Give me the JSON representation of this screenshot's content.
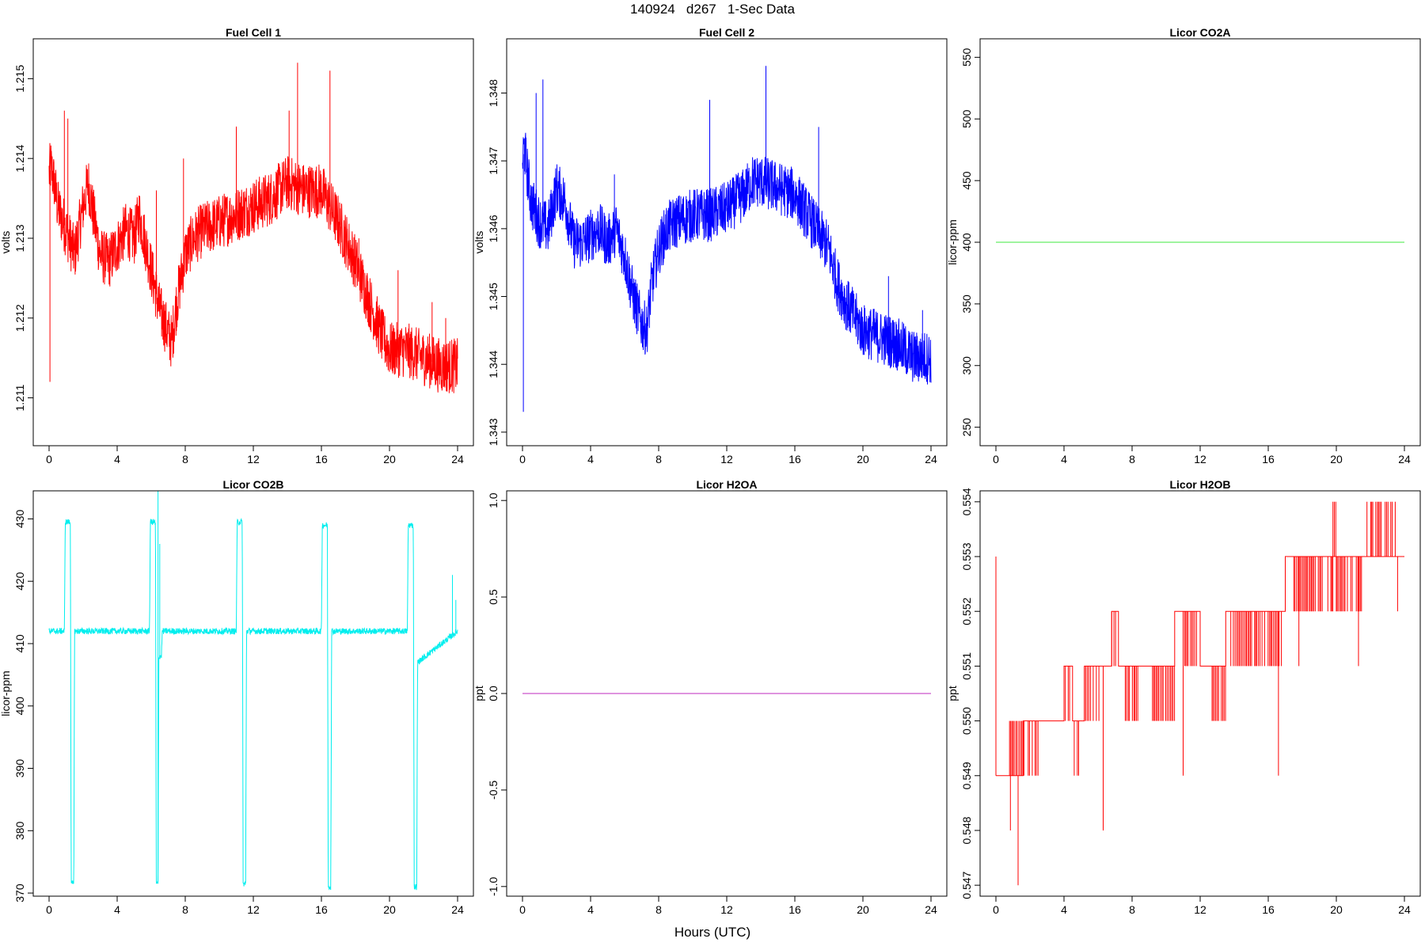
{
  "figure": {
    "title": "140924   d267   1-Sec Data",
    "xlabel": "Hours (UTC)"
  },
  "chart_data": [
    {
      "type": "line",
      "title": "Fuel Cell 1",
      "ylabel": "volts",
      "color": "#ff0000",
      "xlim": [
        0,
        24
      ],
      "ylim": [
        1.2104,
        1.2155
      ],
      "xticks": [
        0,
        4,
        8,
        12,
        16,
        20,
        24
      ],
      "yticks": [
        1.211,
        1.212,
        1.213,
        1.214,
        1.215
      ],
      "ytick_labels": [
        "1.211",
        "1.212",
        "1.213",
        "1.214",
        "1.215"
      ],
      "band": 0.00035,
      "x": [
        0,
        0.1,
        0.3,
        0.5,
        1,
        1.5,
        2,
        2.3,
        2.6,
        3,
        3.5,
        4,
        4.5,
        5,
        5.3,
        5.5,
        6,
        6.5,
        7,
        7.2,
        7.5,
        8,
        8.5,
        9,
        10,
        11,
        12,
        13,
        13.5,
        14,
        15,
        16,
        16.5,
        17,
        18,
        18.5,
        19,
        19.5,
        20,
        21,
        22,
        23,
        24
      ],
      "y": [
        1.2138,
        1.2139,
        1.2137,
        1.2134,
        1.2131,
        1.2128,
        1.2134,
        1.2137,
        1.2133,
        1.2128,
        1.2127,
        1.2129,
        1.2131,
        1.213,
        1.2133,
        1.2131,
        1.2126,
        1.2121,
        1.2118,
        1.2117,
        1.2122,
        1.2128,
        1.213,
        1.2131,
        1.2132,
        1.2133,
        1.2134,
        1.2135,
        1.2136,
        1.2137,
        1.2136,
        1.2136,
        1.2134,
        1.2132,
        1.2127,
        1.2124,
        1.2121,
        1.2118,
        1.2116,
        1.2116,
        1.2115,
        1.2114,
        1.2114
      ],
      "spikes": [
        [
          0.05,
          1.2112
        ],
        [
          0.9,
          1.2146
        ],
        [
          1.1,
          1.2145
        ],
        [
          6.3,
          1.2136
        ],
        [
          7.9,
          1.214
        ],
        [
          11,
          1.2144
        ],
        [
          14.1,
          1.2146
        ],
        [
          14.6,
          1.2152
        ],
        [
          16.5,
          1.2151
        ],
        [
          18.2,
          1.213
        ],
        [
          20.5,
          1.2126
        ],
        [
          22.5,
          1.2122
        ],
        [
          23.3,
          1.212
        ]
      ]
    },
    {
      "type": "line",
      "title": "Fuel Cell 2",
      "ylabel": "volts",
      "color": "#0000ff",
      "xlim": [
        0,
        24
      ],
      "ylim": [
        1.3428,
        1.3488
      ],
      "xticks": [
        0,
        4,
        8,
        12,
        16,
        20,
        24
      ],
      "yticks": [
        1.343,
        1.344,
        1.345,
        1.346,
        1.347,
        1.348
      ],
      "ytick_labels": [
        "1.343",
        "1.344",
        "1.345",
        "1.346",
        "1.347",
        "1.348"
      ],
      "band": 0.0004,
      "x": [
        0,
        0.1,
        0.3,
        0.5,
        1,
        1.5,
        2,
        2.5,
        3,
        3.5,
        4,
        4.5,
        5,
        5.5,
        6,
        6.5,
        7,
        7.3,
        7.6,
        8,
        8.5,
        9,
        10,
        11,
        12,
        13,
        13.5,
        14,
        15,
        16,
        16.5,
        17,
        18,
        18.5,
        19,
        19.5,
        20,
        21,
        22,
        23,
        24
      ],
      "y": [
        1.347,
        1.3472,
        1.3468,
        1.3464,
        1.3461,
        1.346,
        1.3466,
        1.3464,
        1.3458,
        1.3458,
        1.3459,
        1.346,
        1.3458,
        1.346,
        1.3456,
        1.345,
        1.3446,
        1.3445,
        1.3452,
        1.3457,
        1.346,
        1.3461,
        1.3462,
        1.3462,
        1.3463,
        1.3465,
        1.3467,
        1.3467,
        1.3466,
        1.3465,
        1.3463,
        1.3461,
        1.3457,
        1.3452,
        1.3449,
        1.3447,
        1.3445,
        1.3444,
        1.3443,
        1.3441,
        1.3441
      ],
      "spikes": [
        [
          0.05,
          1.3433
        ],
        [
          0.8,
          1.348
        ],
        [
          1.2,
          1.3482
        ],
        [
          5.4,
          1.3468
        ],
        [
          11,
          1.3479
        ],
        [
          14.3,
          1.3484
        ],
        [
          17.4,
          1.3475
        ],
        [
          18.6,
          1.3455
        ],
        [
          21.5,
          1.3453
        ],
        [
          23.5,
          1.3448
        ]
      ]
    },
    {
      "type": "line",
      "title": "Licor CO2A",
      "ylabel": "licor-ppm",
      "color": "#66ee66",
      "xlim": [
        0,
        24
      ],
      "ylim": [
        235,
        565
      ],
      "xticks": [
        0,
        4,
        8,
        12,
        16,
        20,
        24
      ],
      "yticks": [
        250,
        300,
        350,
        400,
        450,
        500,
        550
      ],
      "ytick_labels": [
        "250",
        "300",
        "350",
        "400",
        "450",
        "500",
        "550"
      ],
      "band": 0,
      "x": [
        0,
        24
      ],
      "y": [
        400,
        400
      ],
      "spikes": []
    },
    {
      "type": "line",
      "title": "Licor CO2B",
      "ylabel": "licor-ppm",
      "color": "#00eeee",
      "xlim": [
        0,
        24
      ],
      "ylim": [
        369.5,
        434.5
      ],
      "xticks": [
        0,
        4,
        8,
        12,
        16,
        20,
        24
      ],
      "yticks": [
        370,
        380,
        390,
        400,
        410,
        420,
        430
      ],
      "ytick_labels": [
        "370",
        "380",
        "390",
        "400",
        "410",
        "420",
        "430"
      ],
      "band": 0.5,
      "x": [
        0,
        0.9,
        0.95,
        1.25,
        1.3,
        1.45,
        1.5,
        5.9,
        5.95,
        6.25,
        6.3,
        6.4,
        6.45,
        6.6,
        6.65,
        11.0,
        11.05,
        11.35,
        11.4,
        11.55,
        11.6,
        16.0,
        16.05,
        16.35,
        16.4,
        16.55,
        16.6,
        21.05,
        21.1,
        21.4,
        21.45,
        21.6,
        21.65,
        24
      ],
      "y": [
        412,
        412,
        429.5,
        429.5,
        371.5,
        371.5,
        412,
        412,
        429.5,
        429.5,
        371.5,
        371.5,
        408,
        408,
        412,
        412,
        429.5,
        429.5,
        371.5,
        371.5,
        412,
        412,
        429,
        429,
        371,
        371,
        412,
        412,
        429,
        429,
        371,
        371,
        407,
        412
      ],
      "spikes": [
        [
          6.4,
          435
        ],
        [
          6.5,
          426
        ],
        [
          23.7,
          421
        ],
        [
          23.9,
          417
        ]
      ]
    },
    {
      "type": "line",
      "title": "Licor H2OA",
      "ylabel": "ppt",
      "color": "#cc55cc",
      "xlim": [
        0,
        24
      ],
      "ylim": [
        -1.05,
        1.05
      ],
      "xticks": [
        0,
        4,
        8,
        12,
        16,
        20,
        24
      ],
      "yticks": [
        -1.0,
        -0.5,
        0.0,
        0.5,
        1.0
      ],
      "ytick_labels": [
        "-1.0",
        "-0.5",
        "0.0",
        "0.5",
        "1.0"
      ],
      "band": 0,
      "x": [
        0,
        24
      ],
      "y": [
        0,
        0
      ],
      "spikes": []
    },
    {
      "type": "line",
      "title": "Licor H2OB",
      "ylabel": "ppt",
      "color": "#ff0000",
      "xlim": [
        0,
        24
      ],
      "ylim": [
        0.5468,
        0.5542
      ],
      "xticks": [
        0,
        4,
        8,
        12,
        16,
        20,
        24
      ],
      "yticks": [
        0.547,
        0.548,
        0.549,
        0.55,
        0.551,
        0.552,
        0.553,
        0.554
      ],
      "ytick_labels": [
        "0.547",
        "0.548",
        "0.549",
        "0.550",
        "0.551",
        "0.552",
        "0.553",
        "0.554"
      ],
      "step_segments": [
        [
          0.0,
          1.6,
          0.549
        ],
        [
          1.6,
          4.0,
          0.55
        ],
        [
          4.0,
          4.5,
          0.551
        ],
        [
          4.5,
          5.2,
          0.55
        ],
        [
          5.2,
          6.8,
          0.551
        ],
        [
          6.8,
          7.2,
          0.552
        ],
        [
          7.2,
          10.5,
          0.551
        ],
        [
          10.5,
          12.0,
          0.552
        ],
        [
          12.0,
          13.5,
          0.551
        ],
        [
          13.5,
          17.0,
          0.552
        ],
        [
          17.0,
          24.0,
          0.553
        ]
      ],
      "dense_regions": [
        [
          0.8,
          1.7,
          0.549,
          0.55
        ],
        [
          1.9,
          2.5,
          0.549,
          0.55
        ],
        [
          4.0,
          4.4,
          0.55,
          0.551
        ],
        [
          4.6,
          5.0,
          0.549,
          0.55
        ],
        [
          5.2,
          6.1,
          0.55,
          0.551
        ],
        [
          6.8,
          7.2,
          0.551,
          0.552
        ],
        [
          7.6,
          8.4,
          0.55,
          0.551
        ],
        [
          9.2,
          10.5,
          0.55,
          0.551
        ],
        [
          11.0,
          11.8,
          0.551,
          0.552
        ],
        [
          12.7,
          13.5,
          0.55,
          0.551
        ],
        [
          13.8,
          16.8,
          0.551,
          0.552
        ],
        [
          17.5,
          19.2,
          0.552,
          0.553
        ],
        [
          19.5,
          21.5,
          0.552,
          0.553
        ],
        [
          21.8,
          23.5,
          0.553,
          0.554
        ],
        [
          19.8,
          20.0,
          0.553,
          0.554
        ]
      ],
      "spikes": [
        [
          0.0,
          0.553
        ],
        [
          0.85,
          0.548
        ],
        [
          1.3,
          0.547
        ],
        [
          6.3,
          0.548
        ],
        [
          11.0,
          0.549
        ],
        [
          16.6,
          0.549
        ],
        [
          17.8,
          0.551
        ],
        [
          21.3,
          0.551
        ],
        [
          23.6,
          0.552
        ]
      ]
    }
  ]
}
